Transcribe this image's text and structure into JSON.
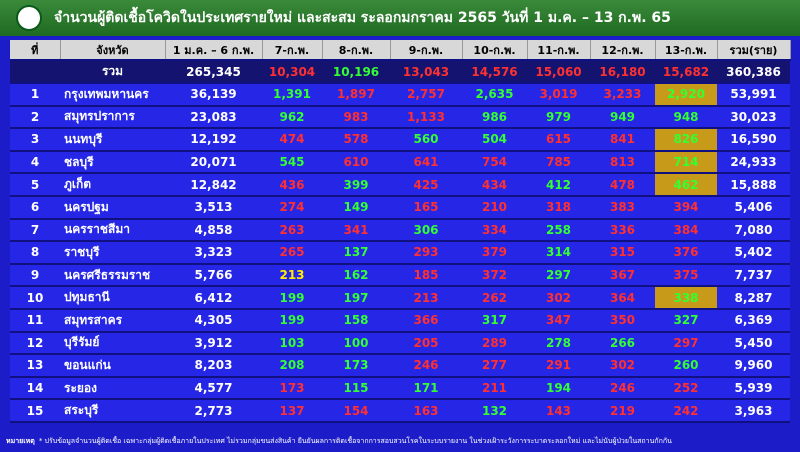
{
  "header": {
    "title": "จำนวนผู้ติดเชื้อโควิดในประเทศรายใหม่ และสะสม ระลอกมกราคม 2565 วันที่ 1 ม.ค. – 13 ก.พ. 65"
  },
  "table": {
    "columns": [
      "ที่",
      "จังหวัด",
      "1 ม.ค. – 6 ก.พ.",
      "7-ก.พ.",
      "8-ก.พ.",
      "9-ก.พ.",
      "10-ก.พ.",
      "11-ก.พ.",
      "12-ก.พ.",
      "13-ก.พ.",
      "รวม(ราย)"
    ],
    "total": [
      "รวม",
      "265,345",
      "10,304",
      "10,196",
      "13,043",
      "14,576",
      "15,060",
      "16,180",
      "15,682",
      "360,386"
    ],
    "rows": [
      [
        "1",
        "กรุงเทพมหานคร",
        "36,139",
        "1,391",
        "1,897",
        "2,757",
        "2,635",
        "3,019",
        "3,233",
        "2,920",
        "53,991"
      ],
      [
        "2",
        "สมุทรปราการ",
        "23,083",
        "962",
        "983",
        "1,133",
        "986",
        "979",
        "949",
        "948",
        "30,023"
      ],
      [
        "3",
        "นนทบุรี",
        "12,192",
        "474",
        "578",
        "560",
        "504",
        "615",
        "841",
        "826",
        "16,590"
      ],
      [
        "4",
        "ชลบุรี",
        "20,071",
        "545",
        "610",
        "641",
        "754",
        "785",
        "813",
        "714",
        "24,933"
      ],
      [
        "5",
        "ภูเก็ต",
        "12,842",
        "436",
        "399",
        "425",
        "434",
        "412",
        "478",
        "462",
        "15,888"
      ],
      [
        "6",
        "นครปฐม",
        "3,513",
        "274",
        "149",
        "165",
        "210",
        "318",
        "383",
        "394",
        "5,406"
      ],
      [
        "7",
        "นครราชสีมา",
        "4,858",
        "263",
        "341",
        "306",
        "334",
        "258",
        "336",
        "384",
        "7,080"
      ],
      [
        "8",
        "ราชบุรี",
        "3,323",
        "265",
        "137",
        "293",
        "379",
        "314",
        "315",
        "376",
        "5,402"
      ],
      [
        "9",
        "นครศรีธรรมราช",
        "5,766",
        "213",
        "162",
        "185",
        "372",
        "297",
        "367",
        "375",
        "7,737"
      ],
      [
        "10",
        "ปทุมธานี",
        "6,412",
        "199",
        "197",
        "213",
        "262",
        "302",
        "364",
        "338",
        "8,287"
      ],
      [
        "11",
        "สมุทรสาคร",
        "4,305",
        "199",
        "158",
        "366",
        "317",
        "347",
        "350",
        "327",
        "6,369"
      ],
      [
        "12",
        "บุรีรัมย์",
        "3,912",
        "103",
        "100",
        "205",
        "289",
        "278",
        "266",
        "297",
        "5,450"
      ],
      [
        "13",
        "ขอนแก่น",
        "8,203",
        "208",
        "173",
        "246",
        "277",
        "291",
        "302",
        "260",
        "9,960"
      ],
      [
        "14",
        "ระยอง",
        "4,577",
        "173",
        "115",
        "171",
        "211",
        "194",
        "246",
        "252",
        "5,939"
      ],
      [
        "15",
        "สระบุรี",
        "2,773",
        "137",
        "154",
        "163",
        "132",
        "143",
        "219",
        "242",
        "3,963"
      ]
    ]
  },
  "footnote": {
    "label": "หมายเหตุ",
    "text": "* ปรับข้อมูลจำนวนผู้ติดเชื้อ เฉพาะกลุ่มผู้ติดเชื้อภายในประเทศ ไม่รวมกลุ่มขนส่งสินค้า ยืนยันผลการติดเชื้อจากการสอบสวนโรคในระบบรายงาน ในช่วงเฝ้าระวังการระบาดระลอกใหม่ และไม่นับผู้ป่วยในสถานกักกัน"
  }
}
